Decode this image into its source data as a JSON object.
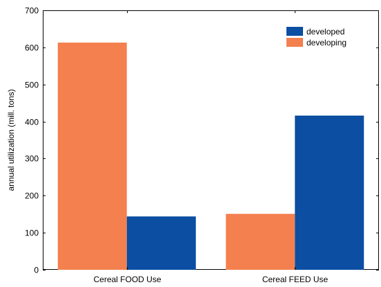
{
  "chart_data": {
    "type": "bar",
    "categories": [
      "Cereal FOOD Use",
      "Cereal FEED Use"
    ],
    "series": [
      {
        "name": "developing",
        "values": [
          613,
          151
        ],
        "color": "#f4804f"
      },
      {
        "name": "developed",
        "values": [
          144,
          416
        ],
        "color": "#0b4ea2"
      }
    ],
    "legend_order": [
      "developed",
      "developing"
    ],
    "title": "",
    "xlabel": "",
    "ylabel": "annual utilization (mill. tons)",
    "ylim": [
      0,
      700
    ],
    "yticks": [
      0,
      100,
      200,
      300,
      400,
      500,
      600,
      700
    ],
    "grid": false,
    "legend_position": "top-right"
  }
}
